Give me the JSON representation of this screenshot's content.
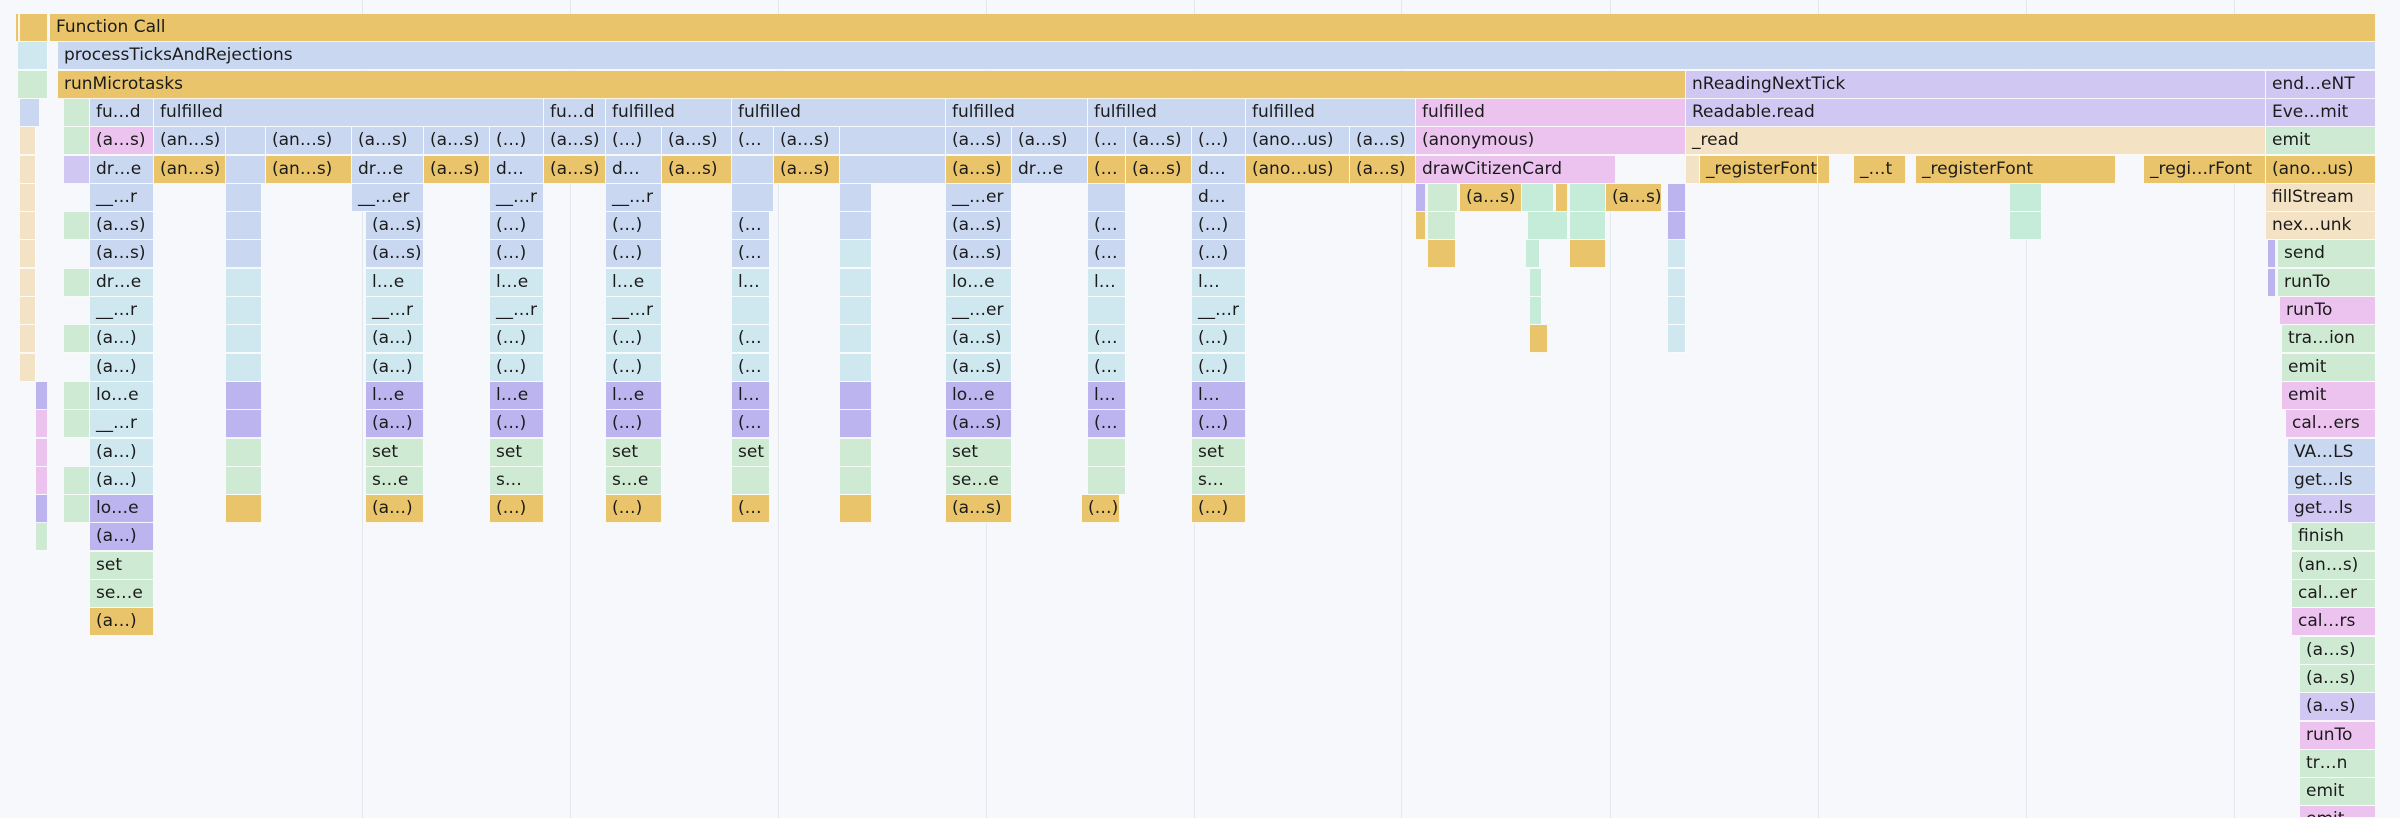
{
  "colors": {
    "yellow": "#e9c46a",
    "blue": "#c9d8f0",
    "cyan": "#cfe7ef",
    "purple": "#d0c8f2",
    "pink": "#ecc2ef",
    "green": "#cfead3",
    "peach": "#f3e2c3",
    "teal": "#c4ecd9",
    "violet": "#bbb4ee"
  },
  "flame_graph": {
    "function_call": "Function Call",
    "process_ticks": "processTicksAndRejections",
    "run_microtasks": "runMicrotasks",
    "readable_next_tick": "nReadingNextTick",
    "end_next_tick": "end…eNT",
    "readable_read": "Readable.read",
    "event_emit": "Eve…mit",
    "read": "_read",
    "emit": "emit",
    "register_font": "_registerFont",
    "register_font_short": "_…t",
    "register_font_trunc": "_regi…rFont",
    "anonymous_us": "(ano…us)",
    "fill_stream": "fillStream",
    "next_chunk": "nex…unk",
    "send": "send",
    "run_to": "runTo",
    "transition": "tra…ion",
    "call_ers": "cal…ers",
    "values": "VA…LS",
    "get_ls": "get…ls",
    "finish": "finish",
    "anonymous_s": "(an…s)",
    "call_er": "cal…er",
    "call_rs": "cal…rs",
    "a_s": "(a…s)",
    "tr_n": "tr…n",
    "emit_cut": "emit",
    "fulfilled": "fulfilled",
    "fu_d": "fu…d",
    "dr_e": "dr…e",
    "d_dots": "d…",
    "paren_dots": "(…)",
    "a_dots": "(a…)",
    "open_dots": "(…",
    "dunder_r": "__…r",
    "dunder_er": "__…er",
    "l_e": "l…e",
    "lo_e": "lo…e",
    "l_dots": "l…",
    "set": "set",
    "s_e": "s…e",
    "se_e": "se…e",
    "s_dots": "s…",
    "anonymous": "(anonymous)",
    "draw_citizen_card": "drawCitizenCard"
  }
}
